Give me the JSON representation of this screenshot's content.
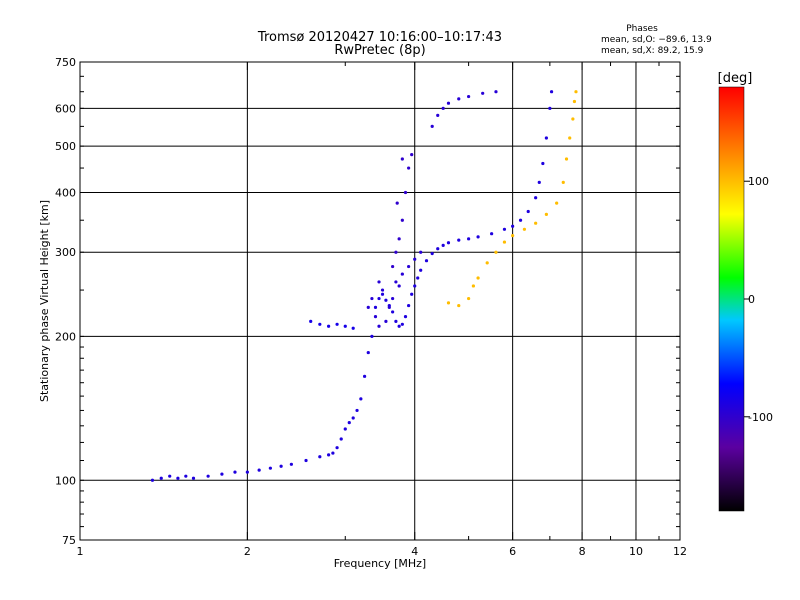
{
  "chart_data": {
    "type": "scatter",
    "title": "Tromsø 20120427 10:16:00–10:17:43",
    "subtitle": "RwPretec (8p)",
    "xlabel": "Frequency [MHz]",
    "ylabel": "Stationary phase Virtual Height [km]",
    "x_scale": "log",
    "y_scale": "log",
    "xlim": [
      1,
      12
    ],
    "ylim": [
      75,
      750
    ],
    "x_ticks": [
      1,
      2,
      4,
      6,
      8,
      10,
      12
    ],
    "y_ticks": [
      75,
      100,
      200,
      300,
      400,
      500,
      600,
      750
    ],
    "grid": true,
    "phases": {
      "title": "Phases",
      "line_o": "mean, sd,O: −89.6, 13.9",
      "line_x": "mean, sd,X: 89.2, 15.9"
    },
    "colorbar": {
      "label": "[deg]",
      "ticks": [
        100,
        0,
        -100
      ],
      "range": [
        -180,
        180
      ]
    },
    "series": [
      {
        "phase": -90,
        "points": [
          [
            1.35,
            100
          ],
          [
            1.4,
            101
          ],
          [
            1.45,
            102
          ],
          [
            1.5,
            101
          ],
          [
            1.55,
            102
          ],
          [
            1.6,
            101
          ],
          [
            1.7,
            102
          ],
          [
            1.8,
            103
          ],
          [
            1.9,
            104
          ],
          [
            2.0,
            104
          ],
          [
            2.1,
            105
          ],
          [
            2.2,
            106
          ],
          [
            2.3,
            107
          ],
          [
            2.4,
            108
          ],
          [
            2.55,
            110
          ],
          [
            2.7,
            112
          ],
          [
            2.8,
            113
          ],
          [
            2.85,
            114
          ],
          [
            2.9,
            117
          ],
          [
            2.95,
            122
          ],
          [
            3.0,
            128
          ],
          [
            3.05,
            132
          ],
          [
            3.1,
            135
          ],
          [
            3.15,
            140
          ],
          [
            3.2,
            148
          ],
          [
            3.25,
            165
          ],
          [
            3.3,
            185
          ],
          [
            3.35,
            200
          ],
          [
            3.4,
            230
          ],
          [
            3.45,
            240
          ],
          [
            3.5,
            245
          ],
          [
            3.55,
            238
          ],
          [
            3.6,
            232
          ],
          [
            3.65,
            225
          ],
          [
            3.7,
            215
          ],
          [
            3.75,
            210
          ],
          [
            3.8,
            212
          ],
          [
            3.85,
            220
          ],
          [
            3.9,
            232
          ],
          [
            3.95,
            245
          ],
          [
            4.0,
            255
          ],
          [
            4.05,
            265
          ],
          [
            4.1,
            275
          ],
          [
            4.2,
            288
          ],
          [
            4.3,
            298
          ],
          [
            4.4,
            305
          ],
          [
            4.5,
            310
          ],
          [
            4.6,
            314
          ],
          [
            4.8,
            318
          ],
          [
            5.0,
            320
          ],
          [
            5.2,
            323
          ],
          [
            5.5,
            328
          ],
          [
            5.8,
            335
          ],
          [
            6.0,
            340
          ],
          [
            6.2,
            350
          ],
          [
            6.4,
            365
          ],
          [
            6.6,
            390
          ],
          [
            6.7,
            420
          ],
          [
            6.8,
            460
          ],
          [
            6.9,
            520
          ],
          [
            7.0,
            600
          ],
          [
            7.05,
            650
          ]
        ]
      },
      {
        "phase": -95,
        "points": [
          [
            3.35,
            240
          ],
          [
            3.4,
            220
          ],
          [
            3.45,
            260
          ],
          [
            3.5,
            250
          ],
          [
            3.6,
            230
          ],
          [
            3.7,
            260
          ],
          [
            3.8,
            270
          ],
          [
            3.9,
            280
          ],
          [
            4.0,
            290
          ],
          [
            4.1,
            300
          ],
          [
            3.3,
            230
          ],
          [
            3.45,
            210
          ],
          [
            3.55,
            215
          ],
          [
            3.65,
            240
          ],
          [
            3.75,
            255
          ]
        ]
      },
      {
        "phase": -85,
        "points": [
          [
            2.6,
            215
          ],
          [
            2.7,
            212
          ],
          [
            2.8,
            210
          ],
          [
            2.9,
            212
          ],
          [
            3.0,
            210
          ],
          [
            3.1,
            208
          ]
        ]
      },
      {
        "phase": -100,
        "points": [
          [
            3.65,
            280
          ],
          [
            3.7,
            300
          ],
          [
            3.75,
            320
          ],
          [
            3.8,
            350
          ],
          [
            3.85,
            400
          ],
          [
            3.9,
            450
          ],
          [
            3.95,
            480
          ],
          [
            3.8,
            470
          ],
          [
            3.72,
            380
          ]
        ]
      },
      {
        "phase": -95,
        "points": [
          [
            4.3,
            550
          ],
          [
            4.4,
            580
          ],
          [
            4.5,
            600
          ],
          [
            4.6,
            615
          ],
          [
            4.8,
            628
          ],
          [
            5.0,
            635
          ],
          [
            5.3,
            645
          ],
          [
            5.6,
            650
          ]
        ]
      },
      {
        "phase": 100,
        "points": [
          [
            4.6,
            235
          ],
          [
            4.8,
            232
          ],
          [
            5.0,
            240
          ],
          [
            5.1,
            255
          ],
          [
            5.2,
            265
          ],
          [
            5.4,
            285
          ],
          [
            5.6,
            300
          ],
          [
            5.8,
            315
          ],
          [
            6.0,
            325
          ],
          [
            6.3,
            335
          ],
          [
            6.6,
            345
          ],
          [
            6.9,
            360
          ],
          [
            7.2,
            380
          ],
          [
            7.4,
            420
          ],
          [
            7.5,
            470
          ],
          [
            7.6,
            520
          ],
          [
            7.7,
            570
          ],
          [
            7.75,
            620
          ],
          [
            7.8,
            650
          ]
        ]
      }
    ]
  }
}
